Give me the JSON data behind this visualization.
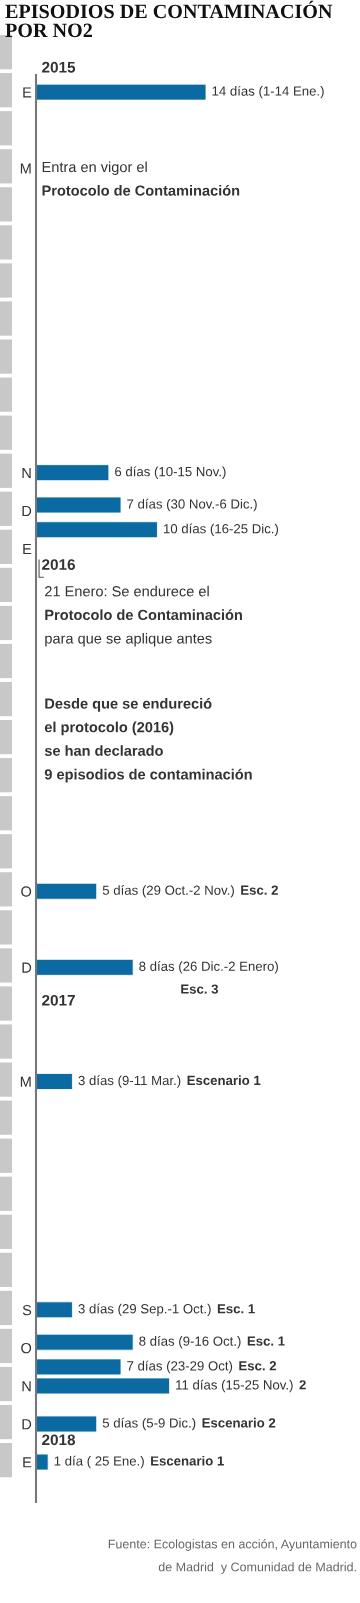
{
  "chart_data": {
    "type": "bar",
    "orientation": "horizontal",
    "title": "EPISODIOS DE CONTAMINACIÓN\nPOR NO2",
    "categories": [
      "E",
      null,
      "M",
      null,
      null,
      null,
      null,
      null,
      null,
      null,
      "N",
      "D",
      "E",
      null,
      null,
      null,
      null,
      null,
      null,
      null,
      null,
      "O",
      null,
      "D",
      null,
      null,
      "M",
      null,
      null,
      null,
      null,
      null,
      "S",
      "O",
      "N",
      "D",
      "E"
    ],
    "series": [
      {
        "color": "#0a6aa1",
        "values": [
          14,
          null,
          null,
          null,
          null,
          null,
          null,
          null,
          null,
          null,
          6,
          7,
          null,
          null,
          null,
          null,
          null,
          null,
          null,
          null,
          null,
          5,
          null,
          8,
          null,
          null,
          3,
          null,
          null,
          null,
          null,
          null,
          3,
          8,
          11,
          5,
          1
        ],
        "value_labels": [
          "14 días (1-14 Ene.)",
          null,
          null,
          null,
          null,
          null,
          null,
          null,
          null,
          null,
          "6 días (10-15 Nov.)",
          "7 días (30 Nov.-6 Dic.)",
          null,
          null,
          null,
          null,
          null,
          null,
          null,
          null,
          null,
          "5 días (29 Oct.-2 Nov.) Esc. 2",
          null,
          "8 días (26 Dic.-2 Enero)\nEsc. 3",
          null,
          null,
          "3 días (9-11 Mar.) Escenario 1",
          null,
          null,
          null,
          null,
          null,
          "3 días (29 Sep.-1 Oct.) Esc. 1",
          "8 días (9-16 Oct.) Esc. 1",
          "11 días (15-25 Nov.) 2",
          "5 días (5-9 Dic.) Escenario 2",
          "1 día ( 25 Ene.) Escenario 1"
        ]
      },
      {
        "color": "#0a6aa1",
        "values": [
          null,
          null,
          null,
          null,
          null,
          null,
          null,
          null,
          null,
          null,
          null,
          10,
          null,
          null,
          null,
          null,
          null,
          null,
          null,
          null,
          null,
          null,
          null,
          null,
          null,
          null,
          null,
          null,
          null,
          null,
          null,
          null,
          null,
          7,
          null,
          null,
          null
        ],
        "value_labels": [
          null,
          null,
          null,
          null,
          null,
          null,
          null,
          null,
          null,
          null,
          null,
          "10 días (16-25 Dic.)",
          null,
          null,
          null,
          null,
          null,
          null,
          null,
          null,
          null,
          null,
          null,
          null,
          null,
          null,
          null,
          null,
          null,
          null,
          null,
          null,
          null,
          "7 días (23-29 Oct) Esc. 2",
          null,
          null,
          null
        ]
      }
    ],
    "tick_labels": "y",
    "annotations": [
      "2015",
      "2016",
      "2017",
      "2018",
      "Entra en vigor el\nProtocolo de Contaminación",
      "21 Enero: Se endurece el\nProtocolo de Contaminación\npara que se aplique antes",
      "Desde que se endureció\nel protocolo (2016)\nse han declarado\n9 episodios de contaminación",
      "Fuente: Ecologistas en acción, Ayuntamiento\nde Madrid  y Comunidad de Madrid."
    ]
  }
}
